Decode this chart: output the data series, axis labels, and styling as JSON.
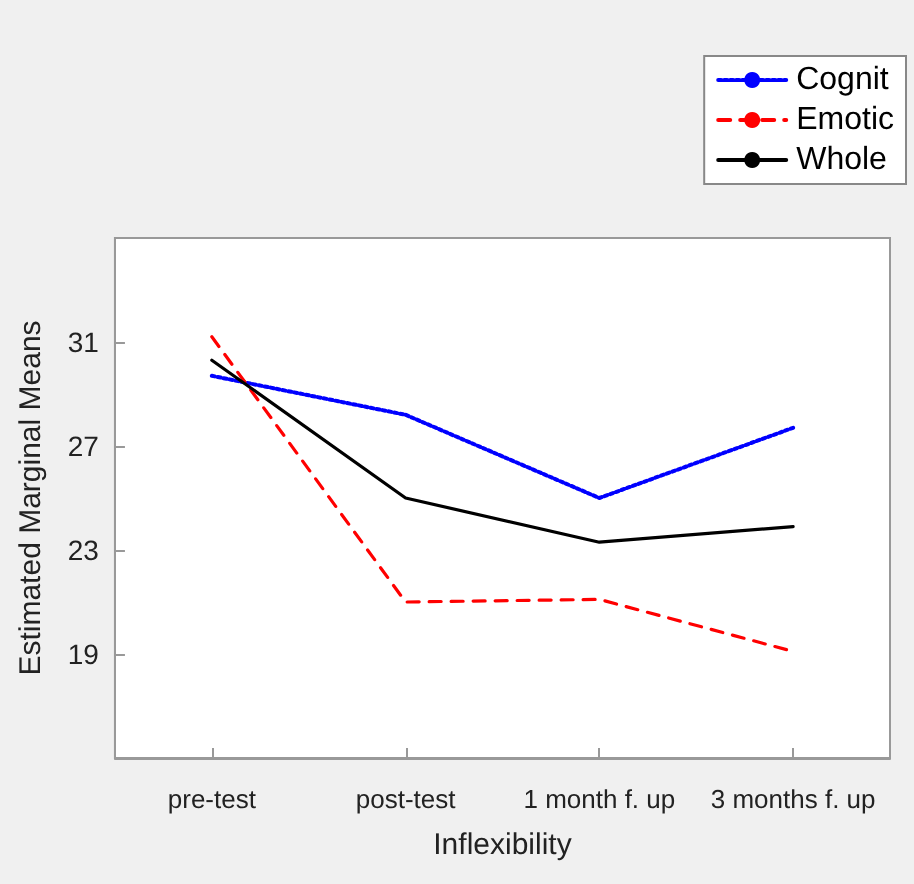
{
  "chart_data": {
    "type": "line",
    "xlabel": "Inflexibility",
    "ylabel": "Estimated Marginal Means",
    "categories": [
      "pre-test",
      "post-test",
      "1 month f. up",
      "3 months f. up"
    ],
    "series": [
      {
        "name": "Cognit",
        "color": "#0000ff",
        "line_style": "dotted",
        "values": [
          29.7,
          28.2,
          25.0,
          27.7
        ]
      },
      {
        "name": "Emotic",
        "color": "#ff0000",
        "line_style": "dashed",
        "values": [
          31.2,
          21.0,
          21.1,
          19.1
        ]
      },
      {
        "name": "Whole",
        "color": "#000000",
        "line_style": "solid",
        "values": [
          30.3,
          25.0,
          23.3,
          23.9
        ]
      }
    ],
    "ylim": [
      15,
      35
    ],
    "yticks": [
      19,
      23,
      27,
      31
    ],
    "grid": false,
    "legend": "top right",
    "marker": "none"
  }
}
